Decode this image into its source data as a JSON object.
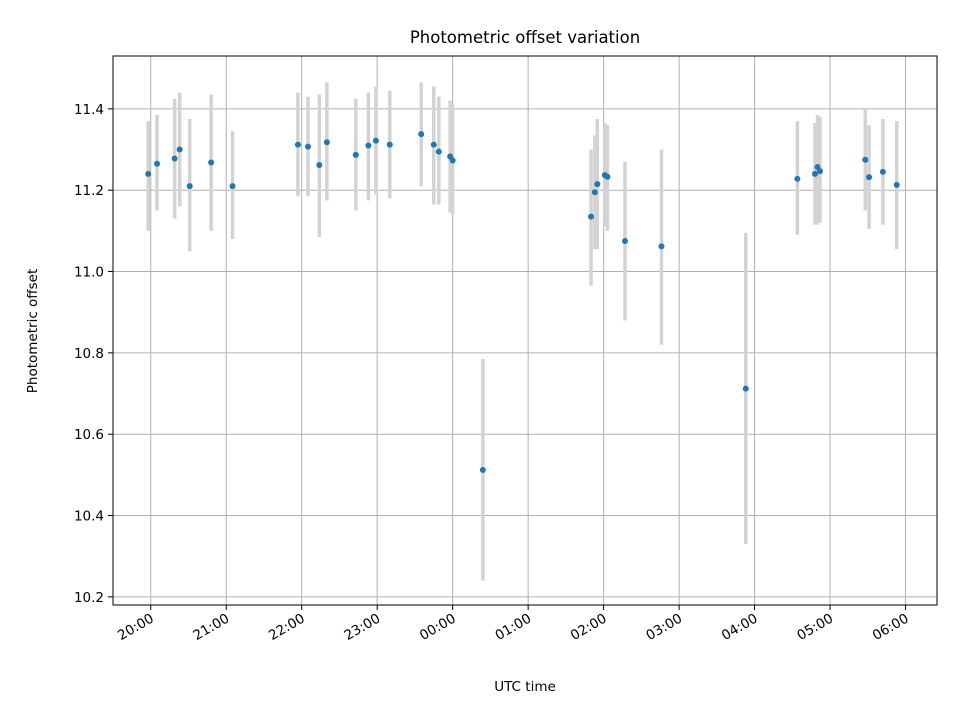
{
  "chart_data": {
    "type": "scatter",
    "title": "Photometric offset variation",
    "xlabel": "UTC time",
    "ylabel": "Photometric offset",
    "xlim": [
      "19:30",
      "06:25"
    ],
    "ylim": [
      10.18,
      11.53
    ],
    "grid": true,
    "x_ticks": [
      "20:00",
      "21:00",
      "22:00",
      "23:00",
      "00:00",
      "01:00",
      "02:00",
      "03:00",
      "04:00",
      "05:00",
      "06:00"
    ],
    "y_ticks": [
      "10.2",
      "10.4",
      "10.6",
      "10.8",
      "11.0",
      "11.2",
      "11.4"
    ],
    "colors": {
      "points": "#1f77b4",
      "error_bars": "#d3d3d3",
      "grid": "#b0b0b0"
    },
    "points": [
      {
        "t": "19:58",
        "y": 11.24,
        "lo": 11.1,
        "hi": 11.37
      },
      {
        "t": "20:05",
        "y": 11.265,
        "lo": 11.15,
        "hi": 11.385
      },
      {
        "t": "20:19",
        "y": 11.278,
        "lo": 11.13,
        "hi": 11.425
      },
      {
        "t": "20:23",
        "y": 11.3,
        "lo": 11.16,
        "hi": 11.44
      },
      {
        "t": "20:31",
        "y": 11.21,
        "lo": 11.05,
        "hi": 11.375
      },
      {
        "t": "20:48",
        "y": 11.268,
        "lo": 11.1,
        "hi": 11.435
      },
      {
        "t": "21:05",
        "y": 11.21,
        "lo": 11.08,
        "hi": 11.345
      },
      {
        "t": "21:57",
        "y": 11.312,
        "lo": 11.185,
        "hi": 11.44
      },
      {
        "t": "22:05",
        "y": 11.307,
        "lo": 11.185,
        "hi": 11.43
      },
      {
        "t": "22:14",
        "y": 11.262,
        "lo": 11.085,
        "hi": 11.435
      },
      {
        "t": "22:20",
        "y": 11.318,
        "lo": 11.175,
        "hi": 11.465
      },
      {
        "t": "22:43",
        "y": 11.287,
        "lo": 11.15,
        "hi": 11.425
      },
      {
        "t": "22:53",
        "y": 11.31,
        "lo": 11.175,
        "hi": 11.44
      },
      {
        "t": "22:59",
        "y": 11.322,
        "lo": 11.19,
        "hi": 11.455
      },
      {
        "t": "23:10",
        "y": 11.312,
        "lo": 11.18,
        "hi": 11.445
      },
      {
        "t": "23:35",
        "y": 11.338,
        "lo": 11.21,
        "hi": 11.465
      },
      {
        "t": "23:45",
        "y": 11.312,
        "lo": 11.165,
        "hi": 11.455
      },
      {
        "t": "23:49",
        "y": 11.295,
        "lo": 11.165,
        "hi": 11.43
      },
      {
        "t": "23:58",
        "y": 11.283,
        "lo": 11.145,
        "hi": 11.42
      },
      {
        "t": "00:00",
        "y": 11.273,
        "lo": 11.14,
        "hi": 11.41
      },
      {
        "t": "00:24",
        "y": 10.512,
        "lo": 10.24,
        "hi": 10.785
      },
      {
        "t": "01:50",
        "y": 11.135,
        "lo": 10.965,
        "hi": 11.3
      },
      {
        "t": "01:53",
        "y": 11.195,
        "lo": 11.055,
        "hi": 11.335
      },
      {
        "t": "01:55",
        "y": 11.215,
        "lo": 11.055,
        "hi": 11.375
      },
      {
        "t": "02:01",
        "y": 11.237,
        "lo": 11.11,
        "hi": 11.365
      },
      {
        "t": "02:03",
        "y": 11.233,
        "lo": 11.1,
        "hi": 11.36
      },
      {
        "t": "02:17",
        "y": 11.075,
        "lo": 10.88,
        "hi": 11.27
      },
      {
        "t": "02:46",
        "y": 11.062,
        "lo": 10.82,
        "hi": 11.3
      },
      {
        "t": "03:53",
        "y": 10.712,
        "lo": 10.33,
        "hi": 11.095
      },
      {
        "t": "04:34",
        "y": 11.228,
        "lo": 11.09,
        "hi": 11.37
      },
      {
        "t": "04:48",
        "y": 11.24,
        "lo": 11.115,
        "hi": 11.365
      },
      {
        "t": "04:50",
        "y": 11.257,
        "lo": 11.115,
        "hi": 11.385
      },
      {
        "t": "04:52",
        "y": 11.247,
        "lo": 11.12,
        "hi": 11.38
      },
      {
        "t": "05:28",
        "y": 11.275,
        "lo": 11.15,
        "hi": 11.4
      },
      {
        "t": "05:31",
        "y": 11.232,
        "lo": 11.105,
        "hi": 11.36
      },
      {
        "t": "05:42",
        "y": 11.245,
        "lo": 11.115,
        "hi": 11.375
      },
      {
        "t": "05:53",
        "y": 11.213,
        "lo": 11.055,
        "hi": 11.37
      }
    ]
  }
}
